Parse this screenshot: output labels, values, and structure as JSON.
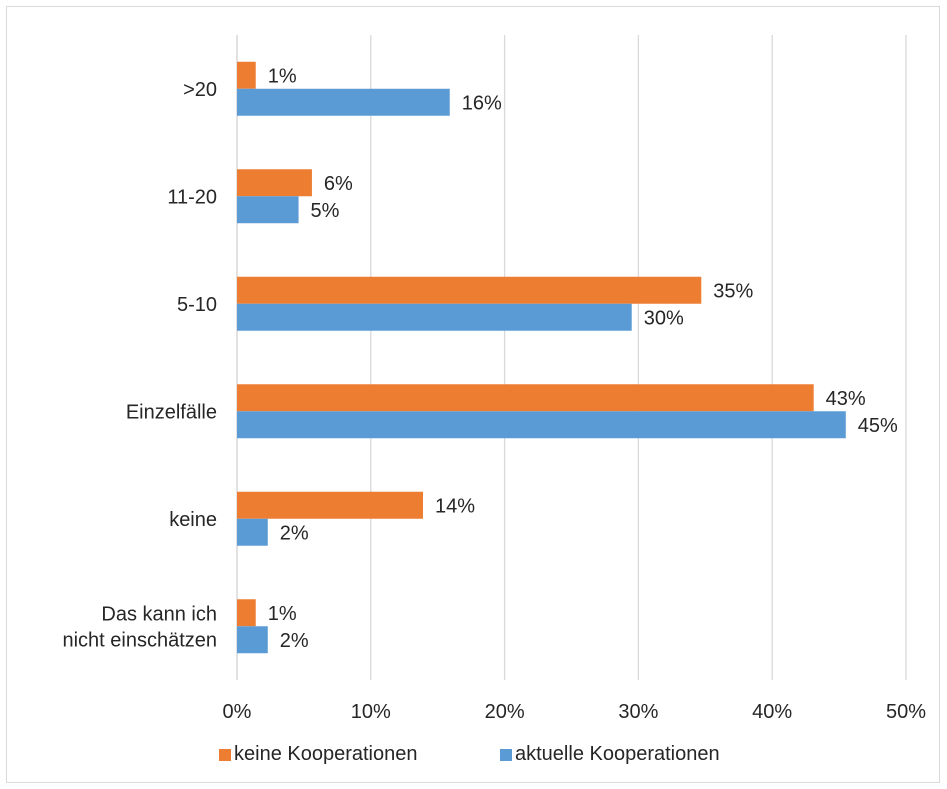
{
  "chart_data": {
    "type": "bar",
    "orientation": "horizontal",
    "categories": [
      ">20",
      "11-20",
      "5-10",
      "Einzelfälle",
      "keine",
      "Das kann ich nicht einschätzen"
    ],
    "category_lines": [
      [
        ">20"
      ],
      [
        "11-20"
      ],
      [
        "5-10"
      ],
      [
        "Einzelfälle"
      ],
      [
        "keine"
      ],
      [
        "Das kann ich",
        "nicht einschätzen"
      ]
    ],
    "series": [
      {
        "name": "keine Kooperationen",
        "color": "#ed7d31",
        "values": [
          1.4,
          5.6,
          34.7,
          43.1,
          13.9,
          1.4
        ],
        "labels": [
          "1%",
          "6%",
          "35%",
          "43%",
          "14%",
          "1%"
        ]
      },
      {
        "name": "aktuelle Kooperationen",
        "color": "#5b9bd5",
        "values": [
          15.9,
          4.6,
          29.5,
          45.5,
          2.3,
          2.3
        ],
        "labels": [
          "16%",
          "5%",
          "30%",
          "45%",
          "2%",
          "2%"
        ]
      }
    ],
    "xlim": [
      0,
      50
    ],
    "xticks": [
      0,
      10,
      20,
      30,
      40,
      50
    ],
    "xtick_labels": [
      "0%",
      "10%",
      "20%",
      "30%",
      "40%",
      "50%"
    ],
    "grid": true,
    "gridline_color": "#d9d9d9",
    "legend_position": "bottom",
    "title": "",
    "xlabel": "",
    "ylabel": ""
  }
}
